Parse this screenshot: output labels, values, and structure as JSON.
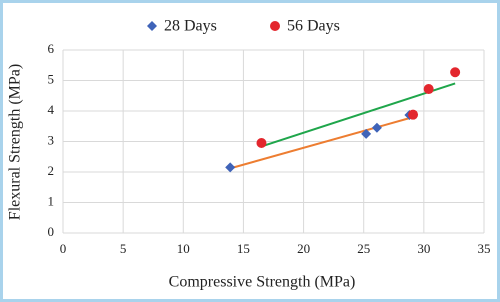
{
  "chart_data": {
    "type": "scatter",
    "x_label": "Compressive Strength (MPa)",
    "y_label": "Flexural Strength (MPa)",
    "xlim": [
      0,
      35
    ],
    "xticks": [
      0,
      5,
      10,
      15,
      20,
      25,
      30,
      35
    ],
    "ylim": [
      0,
      6
    ],
    "yticks": [
      0,
      1,
      2,
      3,
      4,
      5,
      6
    ],
    "grid": true,
    "legend": "top",
    "trendline": true,
    "series": [
      {
        "name": "28 Days",
        "color": "#3f63b8",
        "marker": "diamond",
        "trendline_color": "#ed7d31",
        "x": [
          13.9,
          25.2,
          26.1,
          28.8
        ],
        "values": [
          2.15,
          3.25,
          3.45,
          3.87
        ]
      },
      {
        "name": "56 Days",
        "color": "#e3262d",
        "marker": "circle",
        "trendline_color": "#1fa64b",
        "x": [
          16.5,
          29.1,
          30.4,
          32.6
        ],
        "values": [
          2.95,
          3.88,
          4.72,
          5.27
        ]
      }
    ]
  }
}
